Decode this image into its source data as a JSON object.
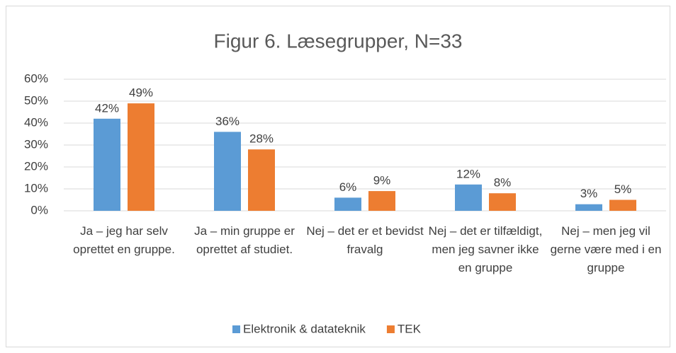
{
  "chart_data": {
    "type": "bar",
    "title": "Figur 6. Læsegrupper, N=33",
    "categories": [
      "Ja – jeg har selv oprettet en gruppe.",
      "Ja – min gruppe er oprettet af studiet.",
      "Nej – det er et bevidst fravalg",
      "Nej – det er tilfældigt, men jeg savner ikke en gruppe",
      "Nej – men jeg vil gerne være med i en gruppe"
    ],
    "series": [
      {
        "name": "Elektronik & datateknik",
        "color": "#5b9bd5",
        "values": [
          42,
          36,
          6,
          12,
          3
        ],
        "value_labels": [
          "42%",
          "36%",
          "6%",
          "12%",
          "3%"
        ]
      },
      {
        "name": "TEK",
        "color": "#ed7d31",
        "values": [
          49,
          28,
          9,
          8,
          5
        ],
        "value_labels": [
          "49%",
          "28%",
          "9%",
          "8%",
          "5%"
        ]
      }
    ],
    "ylim": [
      0,
      60
    ],
    "yticks": [
      {
        "value": 0,
        "label": "0%"
      },
      {
        "value": 10,
        "label": "10%"
      },
      {
        "value": 20,
        "label": "20%"
      },
      {
        "value": 30,
        "label": "30%"
      },
      {
        "value": 40,
        "label": "40%"
      },
      {
        "value": 50,
        "label": "50%"
      },
      {
        "value": 60,
        "label": "60%"
      }
    ],
    "grid": true,
    "legend": "bottom"
  }
}
